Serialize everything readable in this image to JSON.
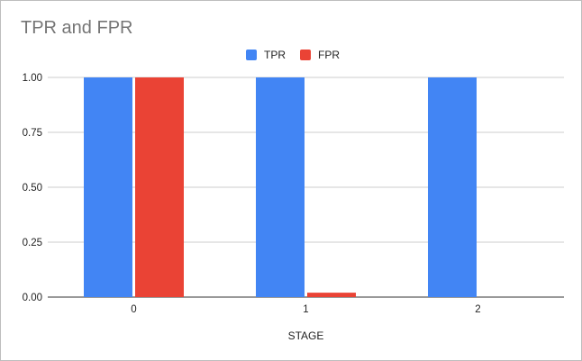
{
  "chart_data": {
    "type": "bar",
    "title": "TPR and FPR",
    "xlabel": "STAGE",
    "ylabel": "",
    "categories": [
      "0",
      "1",
      "2"
    ],
    "series": [
      {
        "name": "TPR",
        "color": "#4285f4",
        "values": [
          1.0,
          1.0,
          1.0
        ]
      },
      {
        "name": "FPR",
        "color": "#ea4335",
        "values": [
          1.0,
          0.02,
          0.0
        ]
      }
    ],
    "yticks": [
      "0.00",
      "0.25",
      "0.50",
      "0.75",
      "1.00"
    ],
    "ylim": [
      0,
      1
    ],
    "grid": true,
    "legend_position": "top"
  }
}
